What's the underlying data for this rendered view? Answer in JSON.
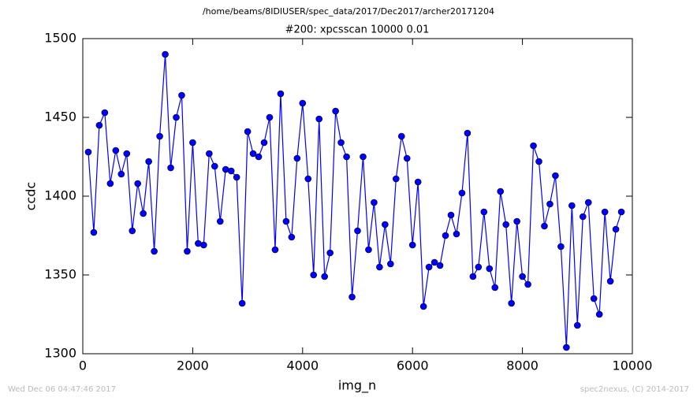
{
  "chart_data": {
    "type": "line",
    "suptitle": "/home/beams/8IDIUSER/spec_data/2017/Dec2017/archer20171204",
    "title": "#200: xpcsscan 10000 0.01",
    "xlabel": "img_n",
    "ylabel": "ccdc",
    "footer_left": "Wed Dec 06 04:47:46 2017",
    "footer_right": "spec2nexus, (C) 2014-2017",
    "xlim": [
      0,
      10000
    ],
    "xticks": [
      0,
      2000,
      4000,
      6000,
      8000,
      10000
    ],
    "ylim": [
      1300,
      1500
    ],
    "yticks": [
      1300,
      1350,
      1400,
      1450,
      1500
    ],
    "grid": false,
    "series": [
      {
        "name": "ccdc",
        "color": "#0000ff",
        "x": [
          100,
          200,
          300,
          400,
          500,
          600,
          700,
          800,
          900,
          1000,
          1100,
          1200,
          1300,
          1400,
          1500,
          1600,
          1700,
          1800,
          1900,
          2000,
          2100,
          2200,
          2300,
          2400,
          2500,
          2600,
          2700,
          2800,
          2900,
          3000,
          3100,
          3200,
          3300,
          3400,
          3500,
          3600,
          3700,
          3800,
          3900,
          4000,
          4100,
          4200,
          4300,
          4400,
          4500,
          4600,
          4700,
          4800,
          4900,
          5000,
          5100,
          5200,
          5300,
          5400,
          5500,
          5600,
          5700,
          5800,
          5900,
          6000,
          6100,
          6200,
          6300,
          6400,
          6500,
          6600,
          6700,
          6800,
          6900,
          7000,
          7100,
          7200,
          7300,
          7400,
          7500,
          7600,
          7700,
          7800,
          7900,
          8000,
          8100,
          8200,
          8300,
          8400,
          8500,
          8600,
          8700,
          8800,
          8900,
          9000,
          9100,
          9200,
          9300,
          9400,
          9500,
          9600,
          9700,
          9800
        ],
        "values": [
          1428,
          1377,
          1445,
          1453,
          1408,
          1429,
          1414,
          1427,
          1378,
          1408,
          1389,
          1422,
          1365,
          1438,
          1490,
          1418,
          1450,
          1464,
          1365,
          1434,
          1370,
          1369,
          1427,
          1419,
          1384,
          1417,
          1416,
          1412,
          1332,
          1441,
          1427,
          1425,
          1434,
          1450,
          1366,
          1465,
          1384,
          1374,
          1424,
          1459,
          1411,
          1350,
          1449,
          1349,
          1364,
          1454,
          1434,
          1425,
          1336,
          1378,
          1425,
          1366,
          1396,
          1355,
          1382,
          1357,
          1411,
          1438,
          1424,
          1369,
          1409,
          1330,
          1355,
          1358,
          1356,
          1375,
          1388,
          1376,
          1402,
          1440,
          1349,
          1355,
          1390,
          1354,
          1342,
          1403,
          1382,
          1332,
          1384,
          1349,
          1344,
          1432,
          1422,
          1381,
          1395,
          1413,
          1368,
          1304,
          1394,
          1318,
          1387,
          1396,
          1335,
          1325,
          1390,
          1346,
          1379,
          1390
        ]
      }
    ]
  }
}
